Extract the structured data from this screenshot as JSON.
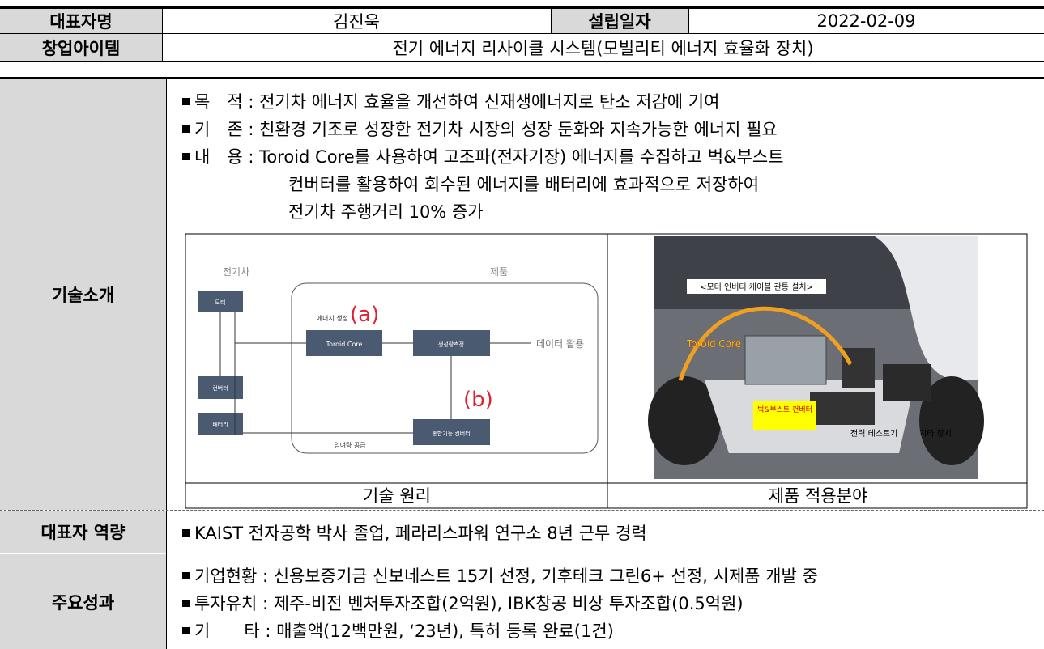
{
  "header": {
    "rows": [
      [
        "대표자명",
        "김진욱",
        "설립일자",
        "2022-02-09"
      ],
      [
        "창업아이템",
        "전기 에너지 리사이클 시스템(모빌리티 에너지 효율화 장치)"
      ]
    ]
  },
  "tech": {
    "label": "기술소개",
    "bullets": [
      {
        "text": "목　적 : 전기차 에너지 효율을 개선하여 신재생에너지로 탄소 저감에 기여"
      },
      {
        "text": "기　존 : 친환경 기조로 성장한 전기차 시장의 성장 둔화와 지속가능한 에너지 필요"
      },
      {
        "text": "내　용 : Toroid Core를 사용하여 고조파(전자기장) 에너지를 수집하고 벅&부스트",
        "continuation": [
          "컨버터를 활용하여 회수된 에너지를 배터리에 효과적으로 저장하여",
          "전기차 주행거리 10% 증가"
        ]
      }
    ],
    "diagram": {
      "caption": "기술 원리",
      "ev": "전기차",
      "product": "제품",
      "motor": "모터",
      "toroid": "Toroid Core",
      "measure": "생성량측정",
      "converter": "컨버터",
      "battery": "배터리",
      "integrated": "통합기능 컨버터",
      "generation": "에너지 생성",
      "supply": "잉여량 공급",
      "a": "(a)",
      "b": "(b)",
      "data_use": "데이터 활용"
    },
    "photo": {
      "caption": "제품 적용분야",
      "install": "<모터 인버터 케이블 관통 설치>",
      "toroid": "Toroid Core",
      "converter": "벅&부스트 컨버터",
      "tester": "전력 테스트기",
      "etc": "기타 장치"
    }
  },
  "capability": {
    "label": "대표자 역량",
    "text": "KAIST 전자공학 박사 졸업, 페라리스파워 연구소 8년 근무 경력"
  },
  "results": {
    "label": "주요성과",
    "bullets": [
      "기업현황 : 신용보증기금 신보네스트 15기 선정, 기후테크 그린6+ 선정, 시제품 개발 중",
      "투자유치 : 제주-비전 벤처투자조합(2억원), IBK창공 비상 투자조합(0.5억원)",
      "기　　타 : 매출액(12백만원, ‘23년), 특허 등록 완료(1건)"
    ]
  }
}
